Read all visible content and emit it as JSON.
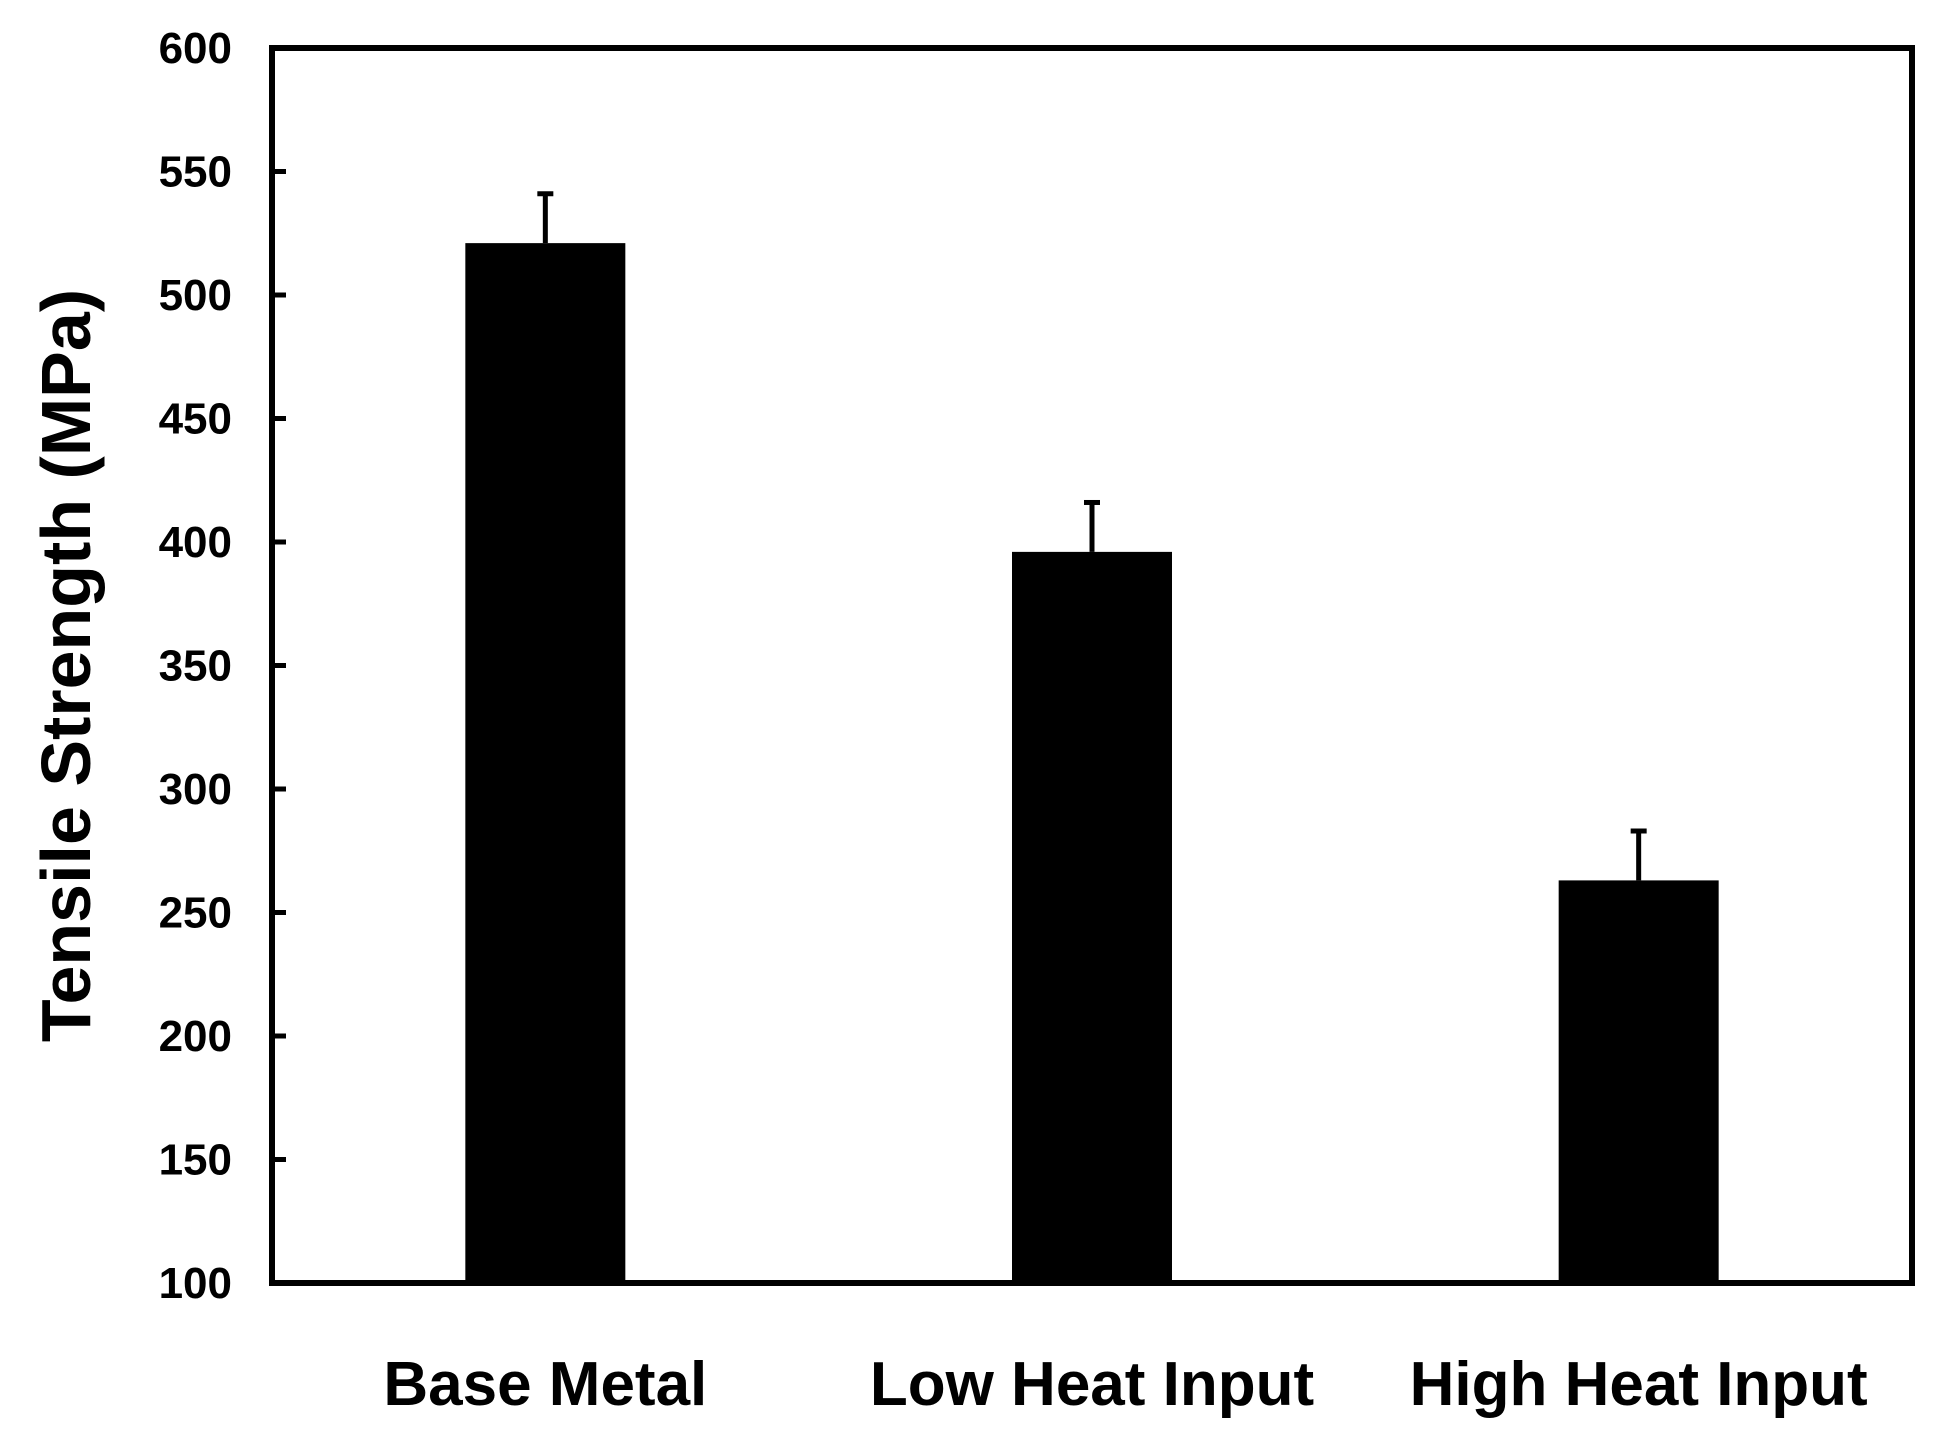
{
  "chart_data": {
    "type": "bar",
    "title": "",
    "xlabel": "",
    "ylabel": "Tensile Strength (MPa)",
    "categories": [
      "Base Metal",
      "Low Heat Input",
      "High Heat Input"
    ],
    "values": [
      521,
      396,
      263
    ],
    "error_plus": [
      20,
      20,
      20
    ],
    "ylim": [
      100,
      600
    ],
    "yticks": [
      100,
      150,
      200,
      250,
      300,
      350,
      400,
      450,
      500,
      550,
      600
    ],
    "ytick_labels": [
      "100",
      "150",
      "200",
      "250",
      "300",
      "350",
      "400",
      "450",
      "500",
      "550",
      "600"
    ],
    "grid": false,
    "legend": "none",
    "colors": {
      "bar": "#000000",
      "axis": "#000000",
      "background": "#ffffff"
    }
  }
}
